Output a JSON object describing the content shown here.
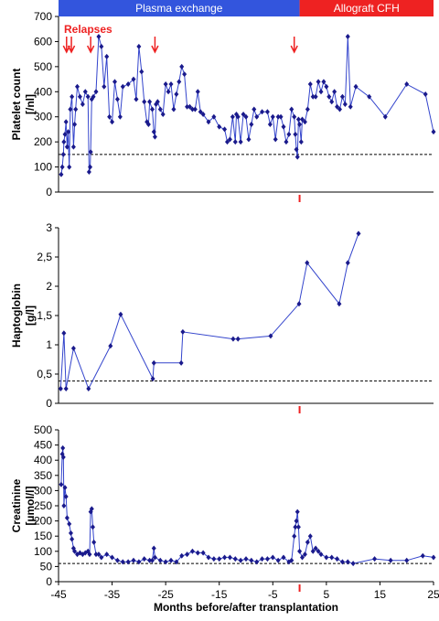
{
  "chart_data": [
    {
      "type": "line",
      "ylabel": [
        "Platelet count",
        "[/nl]"
      ],
      "color": "#1a1a8c",
      "periods": [
        {
          "label": "Plasma exchange",
          "start": -45,
          "end": 0,
          "color": "#3355dd"
        },
        {
          "label": "Allograft CFH",
          "start": 0,
          "end": 25,
          "color": "#ee2222"
        }
      ],
      "relapses": {
        "label": "Relapses",
        "x": [
          -43.5,
          -42.6,
          -39,
          -27,
          -1
        ]
      },
      "xlim": [
        -45,
        25
      ],
      "ylim": [
        0,
        700
      ],
      "yticks": [
        0,
        100,
        200,
        300,
        400,
        500,
        600,
        700
      ],
      "threshold": 150,
      "x": [
        -44.5,
        -44.3,
        -44.1,
        -44,
        -43.8,
        -43.6,
        -43.4,
        -43.2,
        -43,
        -42.8,
        -42.5,
        -42.2,
        -42,
        -41.8,
        -41.5,
        -41,
        -40.5,
        -40,
        -39.5,
        -39.3,
        -39.1,
        -39,
        -38.8,
        -38.5,
        -38,
        -37.5,
        -37,
        -36.5,
        -36,
        -35.5,
        -35,
        -34.5,
        -34,
        -33.5,
        -33,
        -32,
        -31,
        -30.5,
        -30,
        -29.5,
        -29,
        -28.5,
        -28.2,
        -28,
        -27.5,
        -27.2,
        -27,
        -26.8,
        -26.5,
        -26,
        -25.5,
        -25,
        -24.5,
        -24,
        -23.5,
        -23,
        -22.5,
        -22,
        -21.5,
        -21,
        -20.5,
        -20,
        -19.5,
        -19,
        -18.5,
        -18,
        -17,
        -16,
        -15,
        -14,
        -13.5,
        -13,
        -12.5,
        -12,
        -11.8,
        -11.5,
        -11,
        -10.5,
        -10,
        -9.5,
        -9,
        -8.5,
        -8,
        -7,
        -6,
        -5.5,
        -5,
        -4.5,
        -4,
        -3.5,
        -3,
        -2.5,
        -2,
        -1.5,
        -1,
        -0.8,
        -0.6,
        -0.4,
        -0.2,
        0,
        0.3,
        0.5,
        1,
        1.5,
        2,
        2.5,
        3,
        3.5,
        4,
        4.5,
        5,
        5.5,
        6,
        6.5,
        7,
        7.5,
        8,
        8.5,
        9,
        9.5,
        10.5,
        13,
        16,
        20,
        23.5,
        25
      ],
      "values": [
        70,
        100,
        150,
        200,
        230,
        280,
        180,
        240,
        100,
        330,
        380,
        180,
        270,
        330,
        420,
        380,
        350,
        400,
        380,
        80,
        100,
        160,
        370,
        380,
        400,
        620,
        580,
        420,
        540,
        300,
        280,
        440,
        370,
        300,
        420,
        430,
        450,
        370,
        580,
        480,
        360,
        280,
        270,
        360,
        330,
        240,
        220,
        350,
        360,
        330,
        310,
        430,
        400,
        430,
        330,
        390,
        440,
        500,
        470,
        340,
        340,
        330,
        330,
        400,
        320,
        310,
        280,
        300,
        260,
        250,
        200,
        210,
        300,
        200,
        310,
        300,
        200,
        310,
        300,
        210,
        270,
        330,
        300,
        320,
        320,
        270,
        300,
        210,
        300,
        300,
        260,
        200,
        230,
        330,
        300,
        230,
        170,
        140,
        290,
        270,
        200,
        290,
        280,
        330,
        430,
        380,
        380,
        440,
        400,
        440,
        420,
        380,
        360,
        400,
        340,
        330,
        380,
        350,
        620,
        340,
        420,
        380,
        300,
        430,
        390,
        240
      ]
    },
    {
      "type": "line",
      "ylabel": [
        "Haptoglobin",
        "[g/l]"
      ],
      "color": "#1a1a8c",
      "xlim": [
        -45,
        25
      ],
      "ylim": [
        0,
        3
      ],
      "yticks": [
        0,
        {
          "value": 0.5,
          "label": "0,5"
        },
        1,
        {
          "value": 1.5,
          "label": "1,5"
        },
        2,
        {
          "value": 2.5,
          "label": "2,5"
        },
        3
      ],
      "threshold": 0.38,
      "x": [
        -44.6,
        -44,
        -43.6,
        -42.2,
        -39.4,
        -35.3,
        -33.4,
        -27.4,
        -27.2,
        -22.1,
        -21.8,
        -12.4,
        -11.5,
        -5.4,
        -0.1,
        1.4,
        7.4,
        9,
        11
      ],
      "values": [
        0.25,
        1.2,
        0.25,
        0.94,
        0.25,
        0.98,
        1.52,
        0.42,
        0.69,
        0.69,
        1.22,
        1.1,
        1.1,
        1.15,
        1.7,
        2.4,
        1.7,
        2.4,
        2.9
      ]
    },
    {
      "type": "line",
      "ylabel": [
        "Creatinine",
        "[µmol/l]"
      ],
      "color": "#1a1a8c",
      "xlim": [
        -45,
        25
      ],
      "ylim": [
        0,
        500
      ],
      "yticks": [
        0,
        50,
        100,
        150,
        200,
        250,
        300,
        350,
        400,
        450,
        500
      ],
      "threshold": 60,
      "xticks": [
        -45,
        -35,
        -25,
        -15,
        -5,
        5,
        15,
        25
      ],
      "xlabel": "Months before/after transplantation",
      "x": [
        -44.5,
        -44.3,
        -44.2,
        -44.1,
        -44,
        -43.8,
        -43.6,
        -43.4,
        -43,
        -42.7,
        -42.5,
        -42.2,
        -42,
        -41.5,
        -41,
        -40.5,
        -40,
        -39.5,
        -39.2,
        -39,
        -38.8,
        -38.6,
        -38.4,
        -38,
        -37.5,
        -37,
        -36,
        -35,
        -34,
        -33,
        -32,
        -31,
        -30,
        -29,
        -28,
        -27.5,
        -27.2,
        -27,
        -26,
        -25,
        -24,
        -23,
        -22,
        -21,
        -20,
        -19,
        -18,
        -17,
        -16,
        -15,
        -14,
        -13,
        -12,
        -11,
        -10,
        -9,
        -8,
        -7,
        -6,
        -5,
        -4,
        -3,
        -2,
        -1.5,
        -1,
        -0.8,
        -0.6,
        -0.4,
        -0.2,
        0,
        0.5,
        1,
        1.5,
        2,
        2.5,
        3,
        3.5,
        4,
        5,
        6,
        7,
        8,
        9,
        10,
        14,
        17,
        20,
        23,
        25
      ],
      "values": [
        320,
        420,
        440,
        410,
        250,
        310,
        280,
        210,
        190,
        160,
        140,
        110,
        100,
        90,
        95,
        90,
        95,
        100,
        90,
        230,
        240,
        180,
        130,
        90,
        90,
        80,
        90,
        80,
        70,
        65,
        65,
        70,
        65,
        75,
        70,
        70,
        110,
        80,
        70,
        65,
        70,
        65,
        85,
        90,
        100,
        95,
        95,
        80,
        75,
        75,
        80,
        80,
        75,
        70,
        75,
        70,
        65,
        75,
        75,
        80,
        70,
        80,
        65,
        70,
        150,
        180,
        200,
        230,
        180,
        100,
        80,
        90,
        130,
        150,
        100,
        110,
        100,
        90,
        80,
        80,
        75,
        65,
        65,
        60,
        75,
        70,
        70,
        85,
        80
      ]
    }
  ]
}
